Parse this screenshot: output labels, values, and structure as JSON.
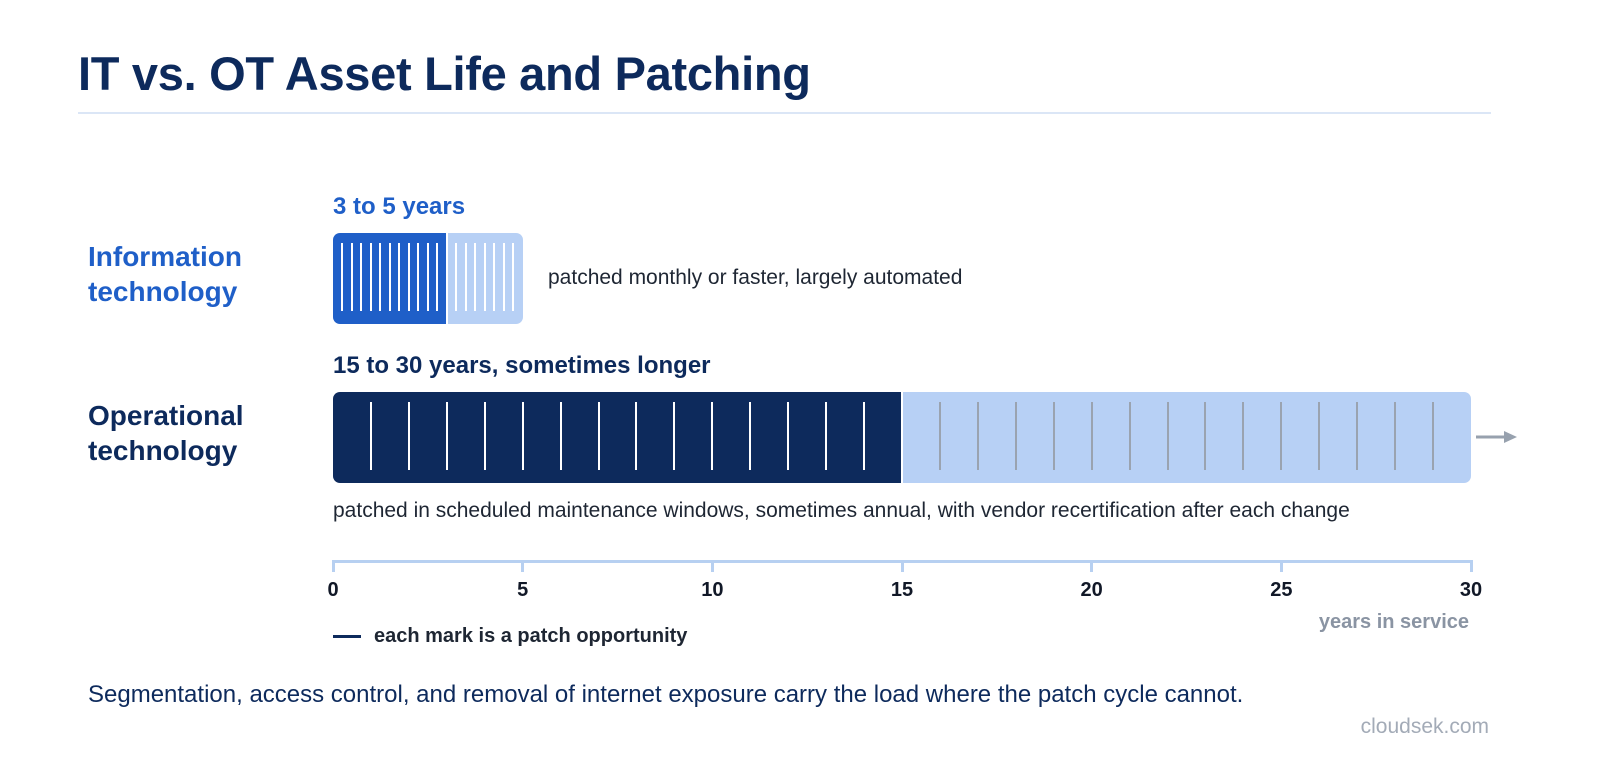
{
  "title": "IT vs. OT Asset Life and Patching",
  "chart_data": {
    "type": "bar",
    "xlabel": "years in service",
    "xlim": [
      0,
      30
    ],
    "x_ticks": [
      "0",
      "5",
      "10",
      "15",
      "20",
      "25",
      "30"
    ],
    "rows": [
      {
        "label_lines": [
          "Information",
          "technology"
        ],
        "range_label": "3 to 5 years",
        "note": "patched monthly or faster, largely automated",
        "solid_years": 3,
        "extended_years": 5,
        "marks_per_year": 4,
        "color": "#1f5fc8",
        "extended_color": "#b7d0f5"
      },
      {
        "label_lines": [
          "Operational",
          "technology"
        ],
        "range_label": "15 to 30 years, sometimes longer",
        "note": "patched in scheduled maintenance windows, sometimes annual, with vendor recertification after each change",
        "solid_years": 15,
        "extended_years": 30,
        "marks_per_year": 1,
        "continues_beyond": true,
        "color": "#0d2a5c",
        "extended_color": "#b7d0f5"
      }
    ],
    "legend": "each mark is a patch opportunity"
  },
  "footnote": "Segmentation, access control, and removal of internet exposure carry the load where the patch cycle cannot.",
  "source": "cloudsek.com"
}
